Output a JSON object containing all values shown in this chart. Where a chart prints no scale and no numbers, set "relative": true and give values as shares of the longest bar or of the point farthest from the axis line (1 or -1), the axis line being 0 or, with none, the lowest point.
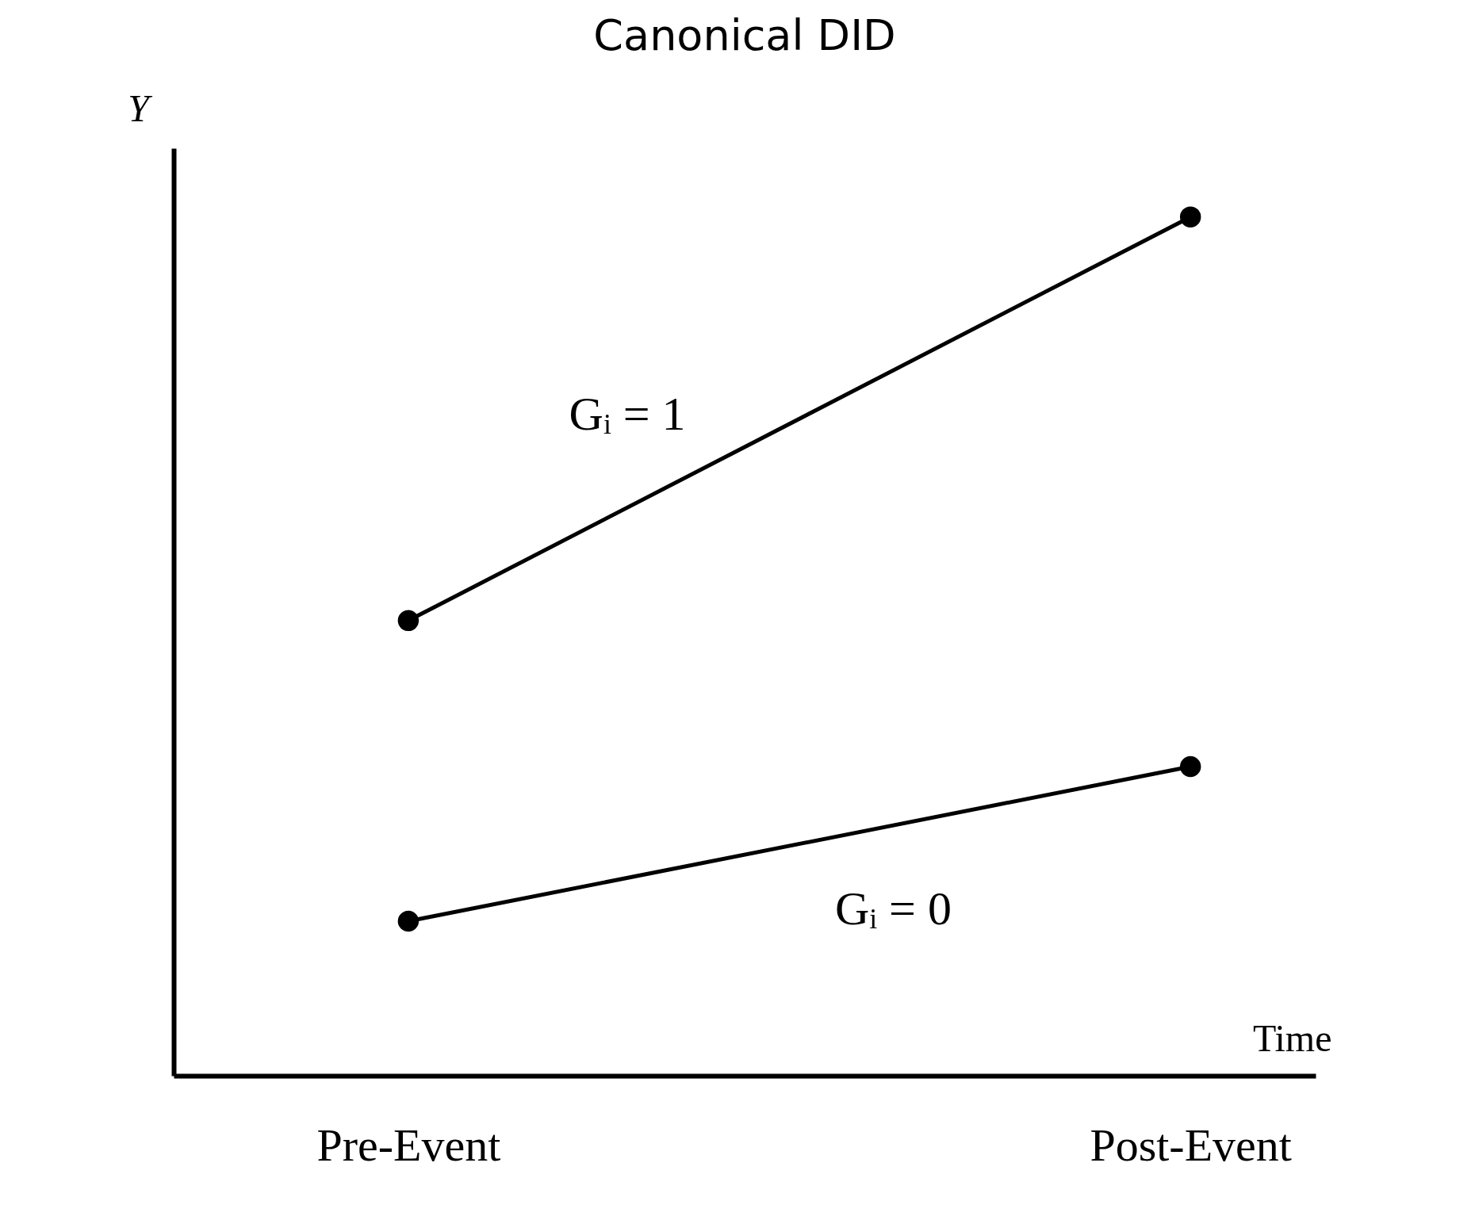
{
  "chart_data": {
    "type": "line",
    "title": "Canonical DID",
    "xlabel": "Time",
    "ylabel": "Y",
    "categories": [
      "Pre-Event",
      "Post-Event"
    ],
    "relative": true,
    "marker": "circle",
    "line_style": "solid",
    "series": [
      {
        "name": "Gᵢ = 1",
        "color": "#000000",
        "values": [
          0.53,
          1
        ]
      },
      {
        "name": "Gᵢ = 0",
        "color": "#000000",
        "values": [
          0.18,
          0.36
        ]
      }
    ]
  }
}
